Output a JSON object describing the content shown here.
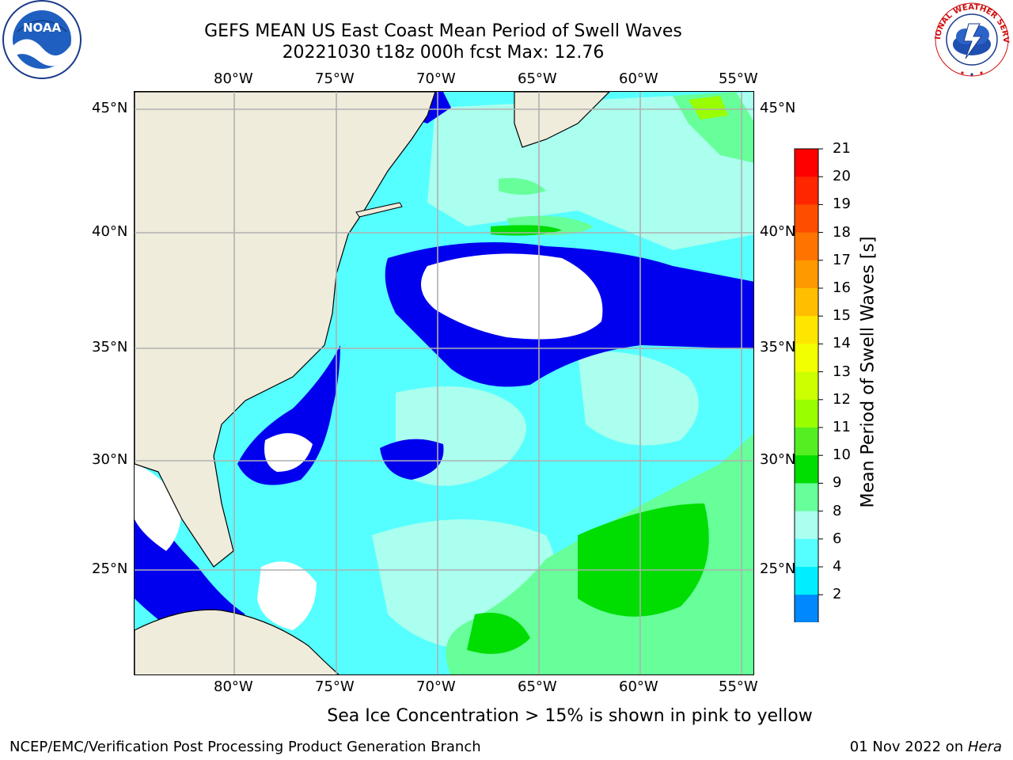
{
  "title": {
    "line1": "GEFS MEAN US East Coast Mean Period of Swell Waves",
    "line2": "20221030 t18z 000h fcst   Max: 12.76"
  },
  "map": {
    "lon_labels": [
      "80°W",
      "75°W",
      "70°W",
      "65°W",
      "60°W",
      "55°W"
    ],
    "lat_labels": [
      "45°N",
      "40°N",
      "35°N",
      "30°N",
      "25°N"
    ],
    "land_color": "#efecdc",
    "grid_color": "#b0b0b0",
    "coast_color": "#000000"
  },
  "colorbar": {
    "title": "Mean Period of Swell Waves [s]",
    "ticks": [
      "21",
      "20",
      "19",
      "18",
      "17",
      "16",
      "15",
      "14",
      "13",
      "12",
      "11",
      "10",
      "9",
      "8",
      "6",
      "4",
      "2"
    ],
    "colors": [
      "#ff0000",
      "#ff2600",
      "#ff4d00",
      "#ff7300",
      "#ff9900",
      "#ffbf00",
      "#ffe600",
      "#f2ff00",
      "#ccff00",
      "#99ff00",
      "#55ee22",
      "#00dd00",
      "#66ff99",
      "#aaffee",
      "#55ffff",
      "#00eeff",
      "#0088ff"
    ],
    "under_color": "#0000ee"
  },
  "note": "Sea Ice Concentration > 15% is shown in pink to yellow",
  "footer": {
    "left": "NCEP/EMC/Verification Post Processing Product Generation Branch",
    "right_date": "01 Nov 2022 on ",
    "right_host": "Hera"
  },
  "logos": {
    "noaa_text": "NOAA",
    "nws_text": "NATIONAL WEATHER SERVICE"
  }
}
